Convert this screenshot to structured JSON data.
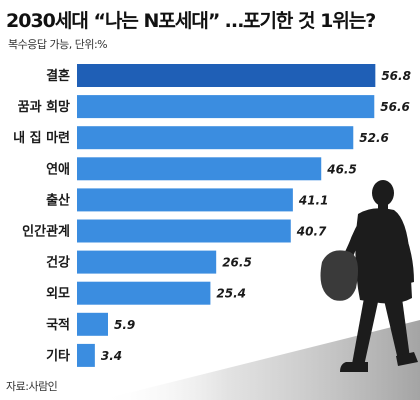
{
  "title": "2030세대 “나는 N포세대” …포기한 것 1위는?",
  "subtitle": "복수응답 가능, 단위:%",
  "source": "자료:사람인",
  "colors": {
    "bar_top": "#1f5fb6",
    "bar": "#3b8de0",
    "figure": "#1a1a1a"
  },
  "chart_data": {
    "type": "bar",
    "orientation": "horizontal",
    "categories": [
      "결혼",
      "꿈과 희망",
      "내 집 마련",
      "연애",
      "출산",
      "인간관계",
      "건강",
      "외모",
      "국적",
      "기타"
    ],
    "values": [
      56.8,
      56.6,
      52.6,
      46.5,
      41.1,
      40.7,
      26.5,
      25.4,
      5.9,
      3.4
    ],
    "value_labels": [
      "56.8",
      "56.6",
      "52.6",
      "46.5",
      "41.1",
      "40.7",
      "26.5",
      "25.4",
      "5.9",
      "3.4"
    ],
    "xlim": [
      0,
      60
    ],
    "grid": false,
    "legend": "none"
  }
}
